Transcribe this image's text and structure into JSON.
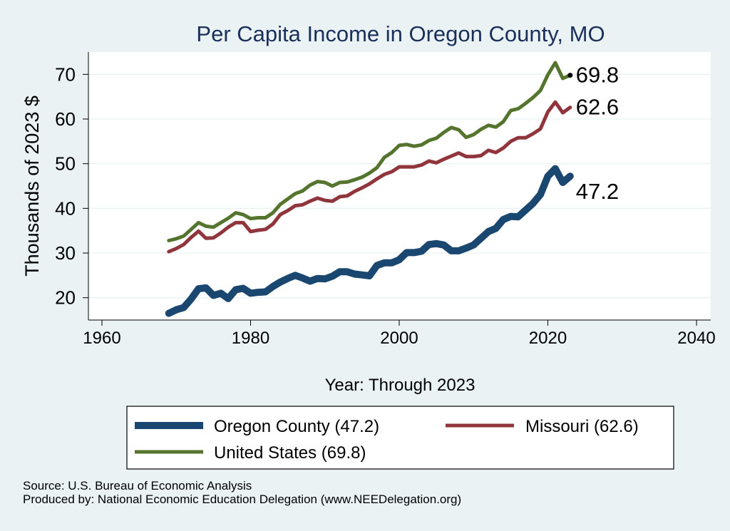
{
  "chart_data": {
    "type": "line",
    "title": "Per Capita Income in Oregon County, MO",
    "xlabel": "Year: Through 2023",
    "ylabel": "Thousands of 2023 $",
    "xlim": [
      1960,
      2040
    ],
    "ylim": [
      15,
      75
    ],
    "x_ticks": [
      1960,
      1980,
      2000,
      2020,
      2040
    ],
    "y_ticks": [
      20,
      30,
      40,
      50,
      60,
      70
    ],
    "grid": true,
    "x": [
      1969,
      1970,
      1971,
      1972,
      1973,
      1974,
      1975,
      1976,
      1977,
      1978,
      1979,
      1980,
      1981,
      1982,
      1983,
      1984,
      1985,
      1986,
      1987,
      1988,
      1989,
      1990,
      1991,
      1992,
      1993,
      1994,
      1995,
      1996,
      1997,
      1998,
      1999,
      2000,
      2001,
      2002,
      2003,
      2004,
      2005,
      2006,
      2007,
      2008,
      2009,
      2010,
      2011,
      2012,
      2013,
      2014,
      2015,
      2016,
      2017,
      2018,
      2019,
      2020,
      2021,
      2022,
      2023
    ],
    "series": [
      {
        "name": "Oregon County",
        "legend": "Oregon County (47.2)",
        "end_label": "47.2",
        "color": "#1a476f",
        "values": [
          16.5,
          17.3,
          17.8,
          19.7,
          22.0,
          22.2,
          20.5,
          21.0,
          19.8,
          21.8,
          22.1,
          21.0,
          21.2,
          21.3,
          22.5,
          23.5,
          24.3,
          25.0,
          24.4,
          23.7,
          24.3,
          24.2,
          24.8,
          25.8,
          25.8,
          25.3,
          25.1,
          24.9,
          27.2,
          27.8,
          27.8,
          28.5,
          30.1,
          30.1,
          30.4,
          31.9,
          32.1,
          31.8,
          30.5,
          30.5,
          31.1,
          31.8,
          33.3,
          34.8,
          35.5,
          37.5,
          38.2,
          38.1,
          39.6,
          41.1,
          43.1,
          47.2,
          48.9,
          45.8,
          47.2
        ]
      },
      {
        "name": "Missouri",
        "legend": "Missouri (62.6)",
        "end_label": "62.6",
        "color": "#90353b",
        "values": [
          30.3,
          31.0,
          31.9,
          33.5,
          34.9,
          33.3,
          33.4,
          34.5,
          35.8,
          36.8,
          36.8,
          34.8,
          35.1,
          35.3,
          36.5,
          38.6,
          39.5,
          40.6,
          40.8,
          41.6,
          42.3,
          41.8,
          41.6,
          42.6,
          42.8,
          43.8,
          44.6,
          45.5,
          46.6,
          47.6,
          48.2,
          49.3,
          49.3,
          49.3,
          49.7,
          50.6,
          50.2,
          51.0,
          51.7,
          52.4,
          51.6,
          51.6,
          51.8,
          53.0,
          52.5,
          53.5,
          55.0,
          55.8,
          55.8,
          56.7,
          57.8,
          61.6,
          63.8,
          61.4,
          62.6
        ]
      },
      {
        "name": "United States",
        "legend": "United States (69.8)",
        "end_label": "69.8",
        "color": "#55752f",
        "values": [
          32.8,
          33.2,
          33.8,
          35.3,
          36.8,
          36.0,
          35.8,
          36.8,
          37.8,
          39.0,
          38.6,
          37.7,
          37.9,
          37.9,
          39.0,
          40.9,
          42.1,
          43.3,
          43.9,
          45.2,
          46.0,
          45.8,
          45.0,
          45.8,
          45.9,
          46.4,
          47.0,
          47.9,
          49.1,
          51.4,
          52.5,
          54.1,
          54.3,
          53.9,
          54.2,
          55.2,
          55.7,
          57.0,
          58.1,
          57.6,
          55.9,
          56.5,
          57.7,
          58.6,
          58.2,
          59.4,
          61.9,
          62.3,
          63.5,
          64.8,
          66.4,
          69.9,
          72.6,
          69.1,
          69.8
        ]
      }
    ]
  },
  "footer": {
    "source": "Source: U.S. Bureau of Economic Analysis",
    "produced_by": "Produced by: National Economic Education Delegation (www.NEEDelegation.org)"
  }
}
